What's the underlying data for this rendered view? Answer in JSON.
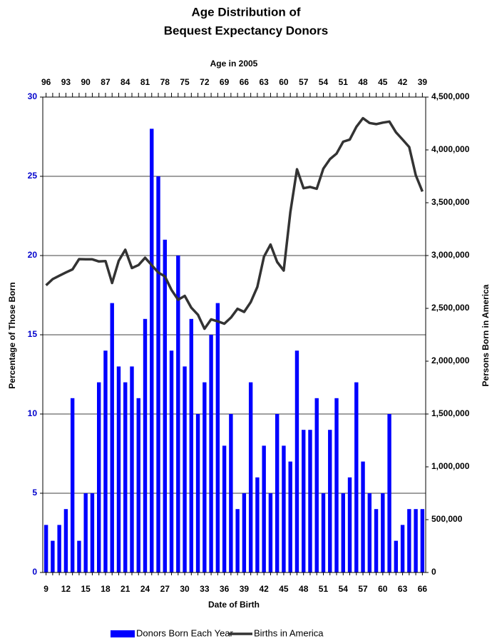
{
  "chart_data": {
    "type": "bar",
    "title": "Age Distribution of",
    "subtitle": "Bequest Expectancy Donors",
    "top_axis_label": "Age in 2005",
    "x_label": "Date of Birth",
    "y_label": "Percentage of Those Born",
    "y2_label": "Persons Born in America",
    "categories": [
      "9",
      null,
      null,
      "12",
      null,
      null,
      "15",
      null,
      null,
      "18",
      null,
      null,
      "21",
      null,
      null,
      "24",
      null,
      null,
      "27",
      null,
      null,
      "30",
      null,
      null,
      "33",
      null,
      null,
      "36",
      null,
      null,
      "39",
      null,
      null,
      "42",
      null,
      null,
      "45",
      null,
      null,
      "48",
      null,
      null,
      "51",
      null,
      null,
      "54",
      null,
      null,
      "57",
      null,
      null,
      "60",
      null,
      null,
      "63",
      null,
      null,
      "66"
    ],
    "top_categories": [
      "96",
      null,
      null,
      "93",
      null,
      null,
      "90",
      null,
      null,
      "87",
      null,
      null,
      "84",
      null,
      null,
      "81",
      null,
      null,
      "78",
      null,
      null,
      "75",
      null,
      null,
      "72",
      null,
      null,
      "69",
      null,
      null,
      "66",
      null,
      null,
      "63",
      null,
      null,
      "60",
      null,
      null,
      "57",
      null,
      null,
      "54",
      null,
      null,
      "51",
      null,
      null,
      "48",
      null,
      null,
      "45",
      null,
      null,
      "42",
      null,
      null,
      "39"
    ],
    "series": [
      {
        "name": "Donors Born Each Year",
        "type": "bar",
        "color": "#0000ff",
        "values": [
          3,
          2,
          3,
          4,
          11,
          2,
          5,
          5,
          12,
          14,
          17,
          13,
          12,
          13,
          11,
          16,
          28,
          25,
          21,
          14,
          20,
          13,
          16,
          10,
          12,
          15,
          17,
          8,
          10,
          4,
          5,
          12,
          6,
          8,
          5,
          10,
          8,
          7,
          14,
          9,
          9,
          11,
          5,
          9,
          11,
          5,
          6,
          12,
          7,
          5,
          4,
          5,
          10,
          2,
          3,
          4,
          4,
          4
        ]
      },
      {
        "name": "Births in America",
        "type": "line",
        "color": "#333333",
        "axis": "y2",
        "values": [
          2718000,
          2777000,
          2809000,
          2840000,
          2869000,
          2966000,
          2965000,
          2964000,
          2944000,
          2948000,
          2740000,
          2950000,
          3055000,
          2882000,
          2910000,
          2979000,
          2909000,
          2839000,
          2802000,
          2674000,
          2582000,
          2618000,
          2506000,
          2440000,
          2307000,
          2396000,
          2377000,
          2355000,
          2413000,
          2496000,
          2466000,
          2559000,
          2703000,
          2989000,
          3104000,
          2939000,
          2858000,
          3411000,
          3817000,
          3637000,
          3649000,
          3632000,
          3823000,
          3913000,
          3965000,
          4078000,
          4097000,
          4218000,
          4300000,
          4255000,
          4244000,
          4258000,
          4268000,
          4167000,
          4098000,
          4027000,
          3760000,
          3606000
        ]
      }
    ],
    "ylim": [
      0,
      30
    ],
    "yticks": [
      0,
      5,
      10,
      15,
      20,
      25,
      30
    ],
    "y2lim": [
      0,
      4500000
    ],
    "y2ticks": [
      0,
      {
        "value": 500000,
        "label": "500,000"
      },
      {
        "value": 1000000,
        "label": "1,000,000"
      },
      {
        "value": 1500000,
        "label": "1,500,000"
      },
      {
        "value": 2000000,
        "label": "2,000,000"
      },
      {
        "value": 2500000,
        "label": "2,500,000"
      },
      {
        "value": 3000000,
        "label": "3,000,000"
      },
      {
        "value": 3500000,
        "label": "3,500,000"
      },
      {
        "value": 4000000,
        "label": "4,000,000"
      },
      {
        "value": 4500000,
        "label": "4,500,000"
      }
    ],
    "grid": true,
    "legend": "bottom"
  }
}
